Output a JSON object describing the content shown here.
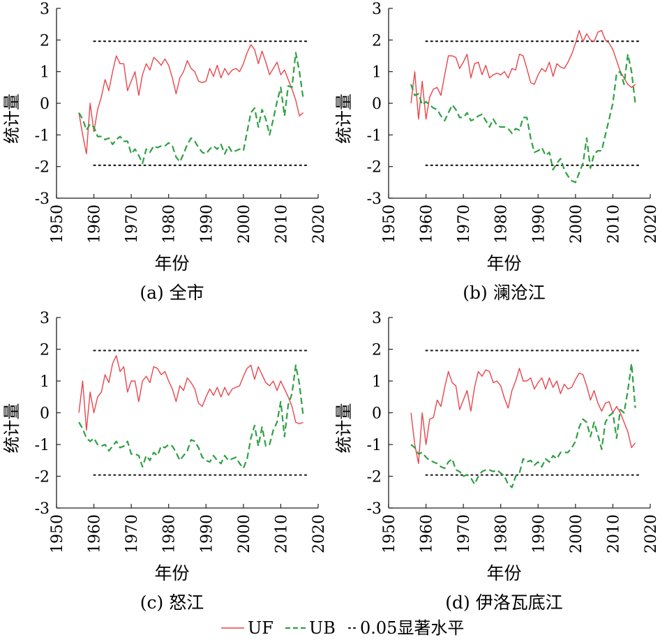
{
  "colors": {
    "uf": "#e8454b",
    "ub": "#2ea043",
    "threshold": "#231f20",
    "axis": "#231f20"
  },
  "legend": {
    "uf": "UF",
    "ub": "UB",
    "threshold": "0.05显著水平"
  },
  "chart_data": [
    {
      "id": "a",
      "type": "line",
      "caption": "(a) 全市",
      "xlabel": "年份",
      "ylabel": "统计量",
      "xlim": [
        1950,
        2020
      ],
      "ylim": [
        -3,
        3
      ],
      "xticks": [
        "1950",
        "1960",
        "1970",
        "1980",
        "1990",
        "2000",
        "2010",
        "2020"
      ],
      "yticks": [
        "-3",
        "-2",
        "-1",
        "0",
        "1",
        "2",
        "3"
      ],
      "threshold": [
        1.96,
        -1.96
      ],
      "x": [
        1956,
        1957,
        1958,
        1959,
        1960,
        1961,
        1962,
        1963,
        1964,
        1965,
        1966,
        1967,
        1968,
        1969,
        1970,
        1971,
        1972,
        1973,
        1974,
        1975,
        1976,
        1977,
        1978,
        1979,
        1980,
        1981,
        1982,
        1983,
        1984,
        1985,
        1986,
        1987,
        1988,
        1989,
        1990,
        1991,
        1992,
        1993,
        1994,
        1995,
        1996,
        1997,
        1998,
        1999,
        2000,
        2001,
        2002,
        2003,
        2004,
        2005,
        2006,
        2007,
        2008,
        2009,
        2010,
        2011,
        2012,
        2013,
        2014,
        2015,
        2016
      ],
      "series": [
        {
          "name": "UF",
          "values": [
            -0.3,
            -1.0,
            -1.6,
            0.0,
            -0.9,
            -0.2,
            0.2,
            0.75,
            0.4,
            1.0,
            1.5,
            1.25,
            1.25,
            0.4,
            0.7,
            1.0,
            0.25,
            0.9,
            1.25,
            1.05,
            1.45,
            1.35,
            1.2,
            1.4,
            1.2,
            0.8,
            0.3,
            0.8,
            1.0,
            1.35,
            1.1,
            1.0,
            0.7,
            0.65,
            0.7,
            1.1,
            0.85,
            1.2,
            0.8,
            1.1,
            0.9,
            1.05,
            1.1,
            1.0,
            1.25,
            1.6,
            1.85,
            1.7,
            1.25,
            1.65,
            1.3,
            0.9,
            1.1,
            1.3,
            0.9,
            1.05,
            0.75,
            0.45,
            0.1,
            -0.4,
            -0.3
          ]
        },
        {
          "name": "UB",
          "values": [
            -0.3,
            -0.5,
            -0.85,
            -0.65,
            -0.75,
            -1.05,
            -1.05,
            -1.15,
            -1.1,
            -1.3,
            -1.15,
            -1.05,
            -1.2,
            -1.2,
            -1.6,
            -1.45,
            -1.65,
            -1.9,
            -1.45,
            -1.55,
            -1.35,
            -1.4,
            -1.35,
            -1.35,
            -1.25,
            -1.35,
            -1.7,
            -1.85,
            -1.6,
            -1.3,
            -1.1,
            -1.2,
            -1.4,
            -1.55,
            -1.6,
            -1.45,
            -1.35,
            -1.45,
            -1.3,
            -1.6,
            -1.35,
            -1.55,
            -1.5,
            -1.45,
            -1.5,
            -0.9,
            -0.3,
            -0.15,
            -0.75,
            -0.2,
            -0.5,
            -1.0,
            -0.5,
            0.05,
            0.5,
            -0.4,
            0.55,
            0.5,
            1.6,
            1.0,
            0.15
          ]
        }
      ]
    },
    {
      "id": "b",
      "type": "line",
      "caption": "(b) 澜沧江",
      "xlabel": "年份",
      "ylabel": "统计量",
      "xlim": [
        1950,
        2020
      ],
      "ylim": [
        -3,
        3
      ],
      "xticks": [
        "1950",
        "1960",
        "1970",
        "1980",
        "1990",
        "2000",
        "2010",
        "2020"
      ],
      "yticks": [
        "-3",
        "-2",
        "-1",
        "0",
        "1",
        "2",
        "3"
      ],
      "threshold": [
        1.96,
        -1.96
      ],
      "x": [
        1956,
        1957,
        1958,
        1959,
        1960,
        1961,
        1962,
        1963,
        1964,
        1965,
        1966,
        1967,
        1968,
        1969,
        1970,
        1971,
        1972,
        1973,
        1974,
        1975,
        1976,
        1977,
        1978,
        1979,
        1980,
        1981,
        1982,
        1983,
        1984,
        1985,
        1986,
        1987,
        1988,
        1989,
        1990,
        1991,
        1992,
        1993,
        1994,
        1995,
        1996,
        1997,
        1998,
        1999,
        2000,
        2001,
        2002,
        2003,
        2004,
        2005,
        2006,
        2007,
        2008,
        2009,
        2010,
        2011,
        2012,
        2013,
        2014,
        2015,
        2016
      ],
      "series": [
        {
          "name": "UF",
          "values": [
            0.0,
            1.0,
            -0.5,
            0.7,
            -0.5,
            0.2,
            0.45,
            0.5,
            0.25,
            0.9,
            1.5,
            1.5,
            1.45,
            1.1,
            1.3,
            1.55,
            0.8,
            1.25,
            1.3,
            0.9,
            1.2,
            0.8,
            0.9,
            0.95,
            0.9,
            1.0,
            0.8,
            1.1,
            1.05,
            1.55,
            1.5,
            1.1,
            0.65,
            0.6,
            0.9,
            1.1,
            1.0,
            1.3,
            0.85,
            1.25,
            1.15,
            1.1,
            1.3,
            1.55,
            1.9,
            2.3,
            1.95,
            2.2,
            2.0,
            1.95,
            2.25,
            2.3,
            2.0,
            1.9,
            1.7,
            1.35,
            1.0,
            0.8,
            0.6,
            0.5,
            0.6
          ]
        },
        {
          "name": "UB",
          "values": [
            0.6,
            0.25,
            0.3,
            -0.05,
            0.05,
            -0.05,
            -0.15,
            -0.2,
            -0.4,
            -0.55,
            -0.3,
            -0.05,
            -0.2,
            -0.45,
            -0.45,
            -0.3,
            -0.55,
            -0.5,
            -0.4,
            -0.35,
            -0.55,
            -0.75,
            -0.5,
            -0.7,
            -0.75,
            -0.75,
            -0.8,
            -0.95,
            -0.8,
            -0.85,
            -0.45,
            -0.45,
            -1.1,
            -1.55,
            -1.5,
            -1.4,
            -1.65,
            -1.55,
            -2.1,
            -1.9,
            -1.75,
            -2.1,
            -2.3,
            -2.45,
            -2.5,
            -2.2,
            -1.9,
            -1.1,
            -2.05,
            -1.6,
            -1.5,
            -1.5,
            -1.0,
            -0.5,
            0.0,
            0.95,
            1.0,
            0.6,
            1.55,
            1.0,
            0.0
          ]
        }
      ]
    },
    {
      "id": "c",
      "type": "line",
      "caption": "(c) 怒江",
      "xlabel": "年份",
      "ylabel": "统计量",
      "xlim": [
        1950,
        2020
      ],
      "ylim": [
        -3,
        3
      ],
      "xticks": [
        "1950",
        "1960",
        "1970",
        "1980",
        "1990",
        "2000",
        "2010",
        "2020"
      ],
      "yticks": [
        "-3",
        "-2",
        "-1",
        "0",
        "1",
        "2",
        "3"
      ],
      "threshold": [
        1.96,
        -1.96
      ],
      "x": [
        1956,
        1957,
        1958,
        1959,
        1960,
        1961,
        1962,
        1963,
        1964,
        1965,
        1966,
        1967,
        1968,
        1969,
        1970,
        1971,
        1972,
        1973,
        1974,
        1975,
        1976,
        1977,
        1978,
        1979,
        1980,
        1981,
        1982,
        1983,
        1984,
        1985,
        1986,
        1987,
        1988,
        1989,
        1990,
        1991,
        1992,
        1993,
        1994,
        1995,
        1996,
        1997,
        1998,
        1999,
        2000,
        2001,
        2002,
        2003,
        2004,
        2005,
        2006,
        2007,
        2008,
        2009,
        2010,
        2011,
        2012,
        2013,
        2014,
        2015,
        2016
      ],
      "series": [
        {
          "name": "UF",
          "values": [
            0.0,
            1.0,
            -0.55,
            0.65,
            0.0,
            0.5,
            0.65,
            1.2,
            0.95,
            1.55,
            1.8,
            1.3,
            1.45,
            0.65,
            1.0,
            1.0,
            0.35,
            1.0,
            1.15,
            0.95,
            1.45,
            1.4,
            1.2,
            1.3,
            1.0,
            0.75,
            0.35,
            0.85,
            0.7,
            1.1,
            0.95,
            0.75,
            0.3,
            0.2,
            0.5,
            0.75,
            0.55,
            0.8,
            0.5,
            0.8,
            0.55,
            0.75,
            0.8,
            0.85,
            1.15,
            1.4,
            1.5,
            1.05,
            1.45,
            1.2,
            0.95,
            0.85,
            1.0,
            0.7,
            1.0,
            0.75,
            0.5,
            0.2,
            -0.3,
            -0.35,
            -0.3
          ]
        },
        {
          "name": "UB",
          "values": [
            -0.3,
            -0.5,
            -0.8,
            -0.9,
            -0.8,
            -1.0,
            -1.05,
            -1.0,
            -1.2,
            -1.05,
            -0.9,
            -1.1,
            -1.05,
            -0.9,
            -1.3,
            -1.3,
            -1.35,
            -1.7,
            -1.35,
            -1.5,
            -1.25,
            -1.35,
            -1.05,
            -1.1,
            -1.0,
            -1.05,
            -1.25,
            -1.5,
            -1.35,
            -1.2,
            -0.85,
            -0.9,
            -1.1,
            -1.4,
            -1.5,
            -1.55,
            -1.35,
            -1.5,
            -1.6,
            -1.35,
            -1.5,
            -1.45,
            -1.4,
            -1.6,
            -1.75,
            -1.45,
            -0.8,
            -0.4,
            -1.05,
            -0.45,
            -1.05,
            -1.0,
            -0.55,
            -0.3,
            0.35,
            -0.75,
            0.25,
            0.6,
            1.5,
            0.9,
            -0.1
          ]
        }
      ]
    },
    {
      "id": "d",
      "type": "line",
      "caption": "(d) 伊洛瓦底江",
      "xlabel": "年份",
      "ylabel": "统计量",
      "xlim": [
        1950,
        2020
      ],
      "ylim": [
        -3,
        3
      ],
      "xticks": [
        "1950",
        "1960",
        "1970",
        "1980",
        "1990",
        "2000",
        "2010",
        "2020"
      ],
      "yticks": [
        "-3",
        "-2",
        "-1",
        "0",
        "1",
        "2",
        "3"
      ],
      "threshold": [
        1.96,
        -1.96
      ],
      "x": [
        1956,
        1957,
        1958,
        1959,
        1960,
        1961,
        1962,
        1963,
        1964,
        1965,
        1966,
        1967,
        1968,
        1969,
        1970,
        1971,
        1972,
        1973,
        1974,
        1975,
        1976,
        1977,
        1978,
        1979,
        1980,
        1981,
        1982,
        1983,
        1984,
        1985,
        1986,
        1987,
        1988,
        1989,
        1990,
        1991,
        1992,
        1993,
        1994,
        1995,
        1996,
        1997,
        1998,
        1999,
        2000,
        2001,
        2002,
        2003,
        2004,
        2005,
        2006,
        2007,
        2008,
        2009,
        2010,
        2011,
        2012,
        2013,
        2014,
        2015,
        2016
      ],
      "series": [
        {
          "name": "UF",
          "values": [
            0.0,
            -1.0,
            -1.6,
            0.0,
            -1.0,
            -0.2,
            -0.15,
            0.4,
            0.2,
            0.8,
            1.3,
            0.95,
            0.85,
            0.1,
            0.4,
            0.7,
            0.05,
            0.8,
            1.3,
            1.15,
            1.35,
            1.3,
            0.95,
            1.0,
            0.85,
            0.45,
            0.15,
            0.7,
            1.0,
            1.4,
            1.0,
            1.0,
            1.1,
            0.75,
            0.95,
            1.1,
            0.75,
            1.1,
            0.8,
            1.0,
            0.6,
            0.9,
            0.75,
            0.8,
            1.05,
            1.25,
            1.2,
            0.85,
            0.4,
            0.7,
            0.3,
            0.05,
            0.3,
            0.35,
            0.0,
            0.2,
            0.0,
            -0.3,
            -0.6,
            -1.1,
            -0.95
          ]
        },
        {
          "name": "UB",
          "values": [
            -1.0,
            -1.1,
            -1.3,
            -1.25,
            -1.4,
            -1.5,
            -1.55,
            -1.6,
            -1.7,
            -1.75,
            -1.55,
            -1.45,
            -1.8,
            -1.85,
            -2.0,
            -1.95,
            -2.05,
            -2.25,
            -2.0,
            -1.85,
            -1.8,
            -1.8,
            -1.85,
            -1.8,
            -1.9,
            -2.0,
            -2.25,
            -2.35,
            -2.0,
            -1.9,
            -1.45,
            -1.55,
            -1.5,
            -1.65,
            -1.55,
            -1.7,
            -1.45,
            -1.55,
            -1.35,
            -1.45,
            -1.25,
            -1.25,
            -1.25,
            -1.1,
            -0.9,
            -0.45,
            -0.2,
            -0.3,
            -0.75,
            -0.3,
            -0.7,
            -1.15,
            -0.3,
            -0.1,
            0.0,
            -0.8,
            0.1,
            0.0,
            0.7,
            1.55,
            0.15
          ]
        }
      ]
    }
  ]
}
